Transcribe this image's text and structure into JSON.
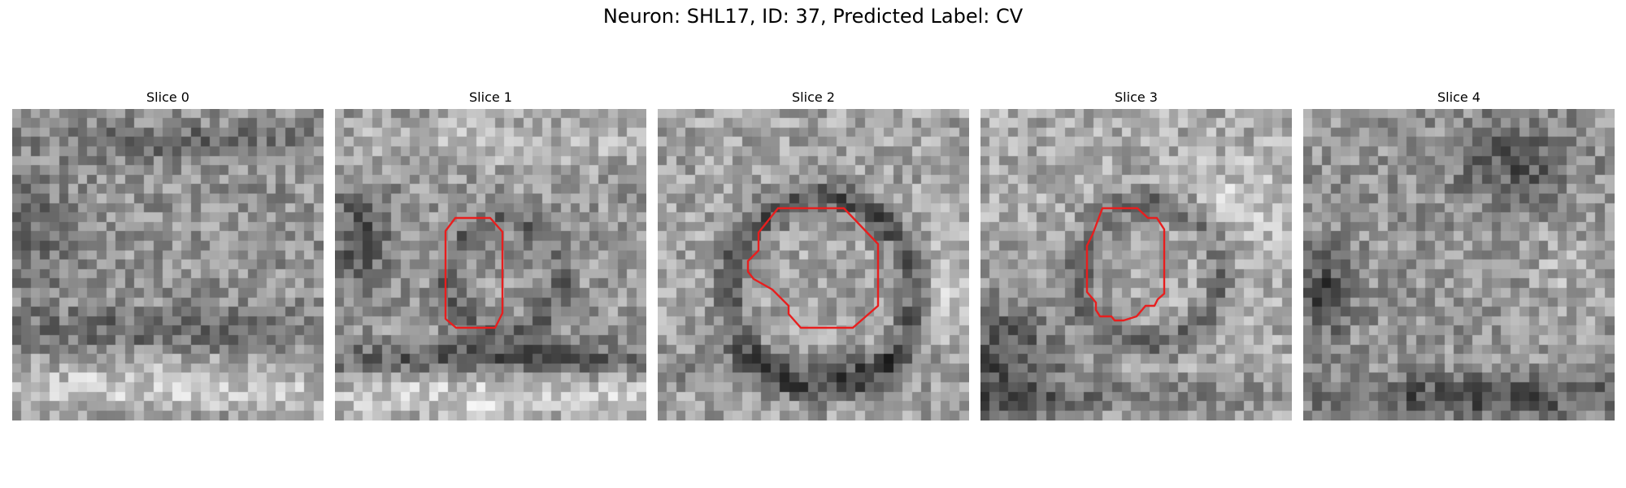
{
  "figure": {
    "title": "Neuron: SHL17, ID: 37, Predicted Label: CV"
  },
  "colors": {
    "contour": "#e81e1e",
    "background": "#ffffff",
    "colormap": "gray"
  },
  "panels": [
    {
      "title": "Slice 0",
      "has_contour": false
    },
    {
      "title": "Slice 1",
      "has_contour": true
    },
    {
      "title": "Slice 2",
      "has_contour": true
    },
    {
      "title": "Slice 3",
      "has_contour": true
    },
    {
      "title": "Slice 4",
      "has_contour": false
    }
  ]
}
